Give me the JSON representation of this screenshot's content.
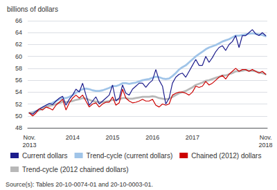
{
  "chart_data": {
    "type": "line",
    "ylabel": "billions of dollars",
    "annotations": [
      "Source(s): Tables 20-10-0074-01 and 20-10-0003-01."
    ],
    "categories": [
      "Nov.\n2013",
      null,
      null,
      null,
      null,
      null,
      null,
      null,
      null,
      null,
      null,
      null,
      null,
      "2014",
      null,
      null,
      null,
      null,
      null,
      null,
      null,
      null,
      null,
      null,
      null,
      "2015",
      null,
      null,
      null,
      null,
      null,
      null,
      null,
      null,
      null,
      null,
      null,
      "2016",
      null,
      null,
      null,
      null,
      null,
      null,
      null,
      null,
      null,
      null,
      null,
      "2017",
      null,
      null,
      null,
      null,
      null,
      null,
      null,
      null,
      null,
      null,
      null,
      null,
      null,
      null,
      null,
      null,
      null,
      null,
      null,
      null,
      null,
      "Nov.\n2018"
    ],
    "series": [
      {
        "name": "Current dollars",
        "color": "#1c1c8c",
        "values": [
          50.5,
          50.3,
          50.8,
          51.2,
          51.5,
          51.8,
          52.1,
          51.9,
          52.5,
          53.0,
          53.3,
          51.8,
          52.8,
          53.5,
          54.5,
          54.0,
          55.5,
          53.5,
          51.8,
          52.5,
          53.2,
          52.0,
          52.5,
          53.0,
          53.5,
          55.2,
          52.5,
          53.0,
          55.2,
          53.8,
          53.5,
          54.5,
          55.0,
          55.5,
          55.5,
          54.8,
          55.5,
          56.0,
          57.8,
          56.0,
          55.0,
          52.0,
          53.0,
          55.5,
          56.5,
          57.0,
          57.2,
          56.5,
          57.5,
          58.5,
          59.5,
          58.5,
          58.5,
          60.0,
          59.0,
          59.8,
          60.8,
          61.5,
          61.8,
          61.0,
          62.0,
          62.5,
          63.5,
          61.5,
          63.5,
          63.5,
          64.0,
          64.5,
          63.8,
          63.5,
          64.0,
          63.5
        ]
      },
      {
        "name": "Trend-cycle (current dollars)",
        "color": "#a0c4e8",
        "values": [
          50.5,
          50.6,
          50.8,
          51.0,
          51.3,
          51.7,
          52.0,
          52.2,
          52.5,
          52.8,
          53.0,
          53.0,
          53.2,
          53.5,
          53.9,
          54.2,
          54.5,
          54.6,
          54.5,
          54.3,
          54.2,
          54.2,
          54.3,
          54.5,
          54.7,
          55.0,
          55.0,
          55.2,
          55.5,
          55.5,
          55.4,
          55.5,
          55.6,
          55.8,
          56.0,
          56.1,
          56.2,
          56.4,
          56.6,
          56.5,
          56.3,
          56.2,
          56.3,
          56.7,
          57.2,
          57.8,
          58.2,
          58.5,
          59.0,
          59.5,
          60.0,
          60.4,
          60.8,
          61.2,
          61.5,
          61.7,
          61.9,
          62.2,
          62.5,
          62.7,
          62.9,
          63.2,
          63.5,
          63.5,
          63.6,
          63.7,
          63.8,
          63.9,
          63.8,
          63.7,
          63.6,
          63.4
        ]
      },
      {
        "name": "Chained (2012) dollars",
        "color": "#cc0000",
        "values": [
          50.5,
          50.0,
          50.5,
          51.2,
          51.0,
          51.5,
          51.3,
          51.0,
          51.8,
          52.3,
          52.8,
          51.0,
          52.2,
          53.0,
          53.5,
          53.0,
          53.5,
          52.5,
          51.5,
          52.0,
          52.2,
          51.5,
          52.0,
          52.3,
          52.3,
          53.2,
          51.8,
          52.2,
          54.5,
          53.0,
          52.5,
          52.2,
          52.3,
          52.5,
          52.8,
          52.5,
          52.5,
          52.8,
          51.8,
          51.5,
          52.0,
          51.8,
          52.0,
          53.5,
          53.8,
          54.0,
          54.0,
          53.8,
          53.5,
          54.0,
          55.0,
          54.8,
          55.0,
          55.8,
          55.2,
          55.5,
          56.0,
          56.5,
          56.8,
          56.2,
          57.0,
          57.5,
          58.0,
          57.5,
          57.8,
          57.8,
          57.5,
          57.8,
          57.5,
          57.2,
          57.5,
          57.0
        ]
      },
      {
        "name": "Trend-cycle (2012 chained dollars)",
        "color": "#b8b8b8",
        "values": [
          50.5,
          50.5,
          50.7,
          51.0,
          51.2,
          51.5,
          51.7,
          51.8,
          52.0,
          52.2,
          52.4,
          52.3,
          52.4,
          52.5,
          52.7,
          52.8,
          53.0,
          52.9,
          52.7,
          52.5,
          52.4,
          52.3,
          52.3,
          52.4,
          52.5,
          52.7,
          52.7,
          52.8,
          53.0,
          53.0,
          52.9,
          52.9,
          53.0,
          53.1,
          53.2,
          53.2,
          53.2,
          53.3,
          53.2,
          53.0,
          52.9,
          52.8,
          52.9,
          53.2,
          53.5,
          53.8,
          54.0,
          54.2,
          54.5,
          54.8,
          55.2,
          55.4,
          55.6,
          55.9,
          56.0,
          56.2,
          56.4,
          56.6,
          56.8,
          56.8,
          57.0,
          57.2,
          57.5,
          57.5,
          57.6,
          57.7,
          57.6,
          57.6,
          57.5,
          57.3,
          57.2,
          57.0
        ]
      }
    ],
    "ylim": [
      48,
      66
    ],
    "yticks": [
      48,
      50,
      52,
      54,
      56,
      58,
      60,
      62,
      64,
      66
    ],
    "grid": true,
    "legend": "bottom"
  }
}
